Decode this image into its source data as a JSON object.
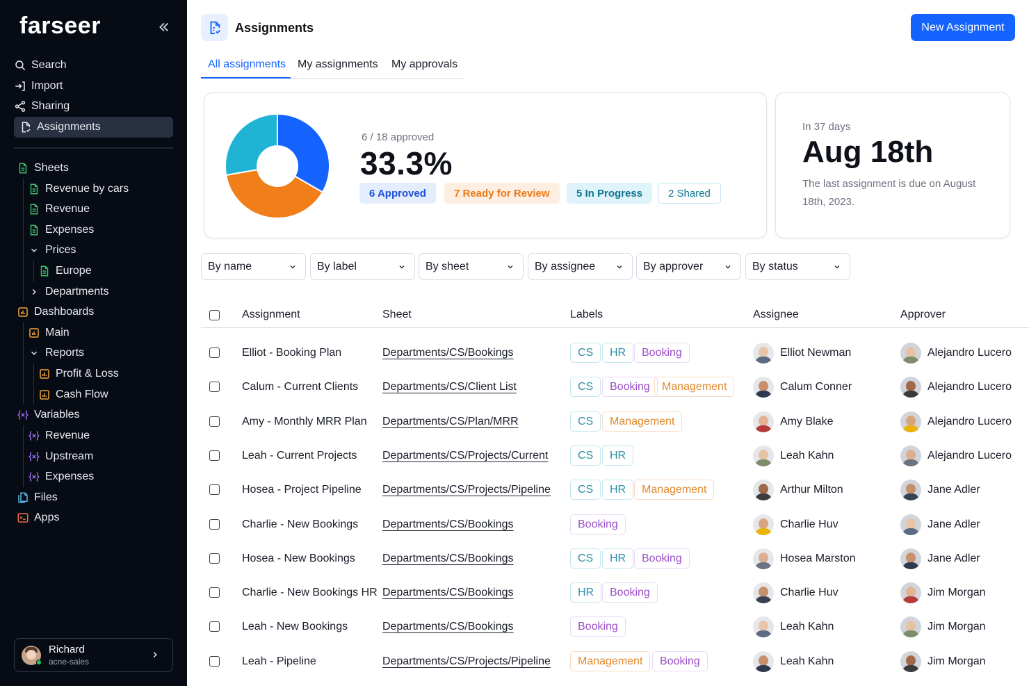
{
  "sidebar": {
    "logo": "farseer",
    "top_items": [
      {
        "label": "Search",
        "icon": "search-icon"
      },
      {
        "label": "Import",
        "icon": "import-icon"
      },
      {
        "label": "Sharing",
        "icon": "share-icon"
      },
      {
        "label": "Assignments",
        "icon": "assignment-icon",
        "active": true
      }
    ],
    "tree": {
      "sheets": {
        "label": "Sheets",
        "children": [
          "Revenue by cars",
          "Revenue",
          "Expenses"
        ],
        "prices": {
          "label": "Prices",
          "children": [
            "Europe"
          ]
        },
        "departments": "Departments"
      },
      "dashboards": {
        "label": "Dashboards",
        "main": "Main",
        "reports": {
          "label": "Reports",
          "children": [
            "Profit & Loss",
            "Cash Flow"
          ]
        }
      },
      "variables": {
        "label": "Variables",
        "children": [
          "Revenue",
          "Upstream",
          "Expenses"
        ]
      },
      "files": "Files",
      "apps": "Apps"
    },
    "user": {
      "name": "Richard",
      "org": "acne-sales"
    }
  },
  "header": {
    "title": "Assignments",
    "new_button": "New Assignment"
  },
  "tabs": [
    "All assignments",
    "My assignments",
    "My approvals"
  ],
  "summary": {
    "approved_text": "6 / 18 approved",
    "percent": "33.3%",
    "pills": {
      "approved": "6 Approved",
      "review": "7 Ready for Review",
      "progress": "5 In Progress",
      "shared": "2 Shared"
    },
    "colors": {
      "approved": "#1463ff",
      "review": "#f07f1a",
      "progress": "#1fb4d6"
    }
  },
  "chart_data": {
    "type": "pie",
    "categories": [
      "Approved",
      "Ready for Review",
      "In Progress"
    ],
    "values": [
      6,
      7,
      5
    ],
    "colors": [
      "#1463ff",
      "#f07f1a",
      "#1fb4d6"
    ]
  },
  "due": {
    "sub": "In 37 days",
    "date": "Aug 18th",
    "desc": "The last assignment is due on August 18th, 2023."
  },
  "filters": [
    "By name",
    "By label",
    "By sheet",
    "By assignee",
    "By approver",
    "By status"
  ],
  "table": {
    "headers": {
      "assignment": "Assignment",
      "sheet": "Sheet",
      "labels": "Labels",
      "assignee": "Assignee",
      "approver": "Approver"
    },
    "rows": [
      {
        "assignment": "Elliot - Booking Plan",
        "sheet": "Departments/CS/Bookings",
        "labels": [
          "CS",
          "HR",
          "Booking"
        ],
        "assignee": "Elliot Newman",
        "approver": "Alejandro Lucero"
      },
      {
        "assignment": "Calum - Current Clients",
        "sheet": "Departments/CS/Client List",
        "labels": [
          "CS",
          "Booking",
          "Management"
        ],
        "assignee": "Calum Conner",
        "approver": "Alejandro Lucero"
      },
      {
        "assignment": "Amy - Monthly MRR Plan",
        "sheet": "Departments/CS/Plan/MRR",
        "labels": [
          "CS",
          "Management"
        ],
        "assignee": "Amy Blake",
        "approver": "Alejandro Lucero"
      },
      {
        "assignment": "Leah - Current Projects",
        "sheet": "Departments/CS/Projects/Current",
        "labels": [
          "CS",
          "HR"
        ],
        "assignee": "Leah Kahn",
        "approver": "Alejandro Lucero"
      },
      {
        "assignment": "Hosea - Project Pipeline",
        "sheet": "Departments/CS/Projects/Pipeline",
        "labels": [
          "CS",
          "HR",
          "Management"
        ],
        "assignee": "Arthur Milton",
        "approver": "Jane Adler"
      },
      {
        "assignment": "Charlie - New Bookings",
        "sheet": "Departments/CS/Bookings",
        "labels": [
          "Booking"
        ],
        "assignee": "Charlie Huv",
        "approver": "Jane Adler"
      },
      {
        "assignment": "Hosea - New Bookings",
        "sheet": "Departments/CS/Bookings",
        "labels": [
          "CS",
          "HR",
          "Booking"
        ],
        "assignee": "Hosea Marston",
        "approver": "Jane Adler"
      },
      {
        "assignment": "Charlie - New Bookings HR",
        "sheet": "Departments/CS/Bookings",
        "labels": [
          "HR",
          "Booking"
        ],
        "assignee": "Charlie Huv",
        "approver": "Jim Morgan"
      },
      {
        "assignment": "Leah - New Bookings",
        "sheet": "Departments/CS/Bookings",
        "labels": [
          "Booking"
        ],
        "assignee": "Leah Kahn",
        "approver": "Jim Morgan"
      },
      {
        "assignment": "Leah - Pipeline",
        "sheet": "Departments/CS/Projects/Pipeline",
        "labels": [
          "Management",
          "Booking"
        ],
        "assignee": "Leah Kahn",
        "approver": "Jim Morgan"
      }
    ]
  }
}
